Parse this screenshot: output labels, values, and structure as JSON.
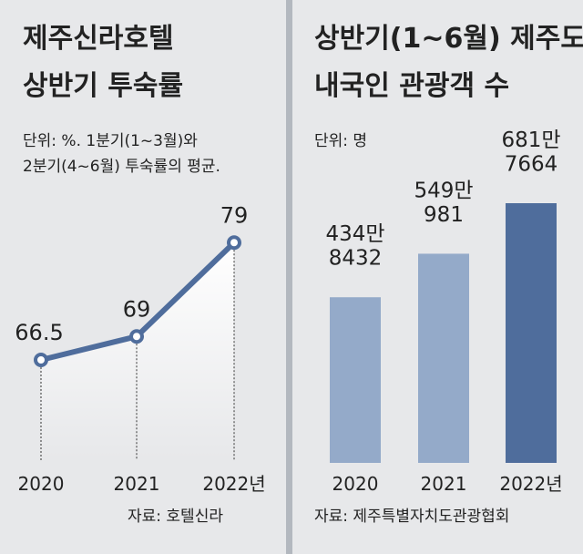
{
  "chart_data": [
    {
      "type": "line",
      "title": [
        "제주신라호텔",
        "상반기 투숙률"
      ],
      "subtitle": [
        "단위: %. 1분기(1~3월)와",
        "2분기(4~6월) 투숙률의 평균."
      ],
      "categories": [
        "2020",
        "2021",
        "2022년"
      ],
      "values": [
        66.5,
        69,
        79
      ],
      "color": "#4f6d9c",
      "source": "자료: 호텔신라"
    },
    {
      "type": "bar",
      "title": [
        "상반기(1~6월) 제주도",
        "내국인 관광객 수"
      ],
      "subtitle": [
        "단위: 명"
      ],
      "categories": [
        "2020",
        "2021",
        "2022년"
      ],
      "values": [
        4348432,
        5490981,
        6817664
      ],
      "value_labels": [
        "434만\n8432",
        "549만\n981",
        "681만\n7664"
      ],
      "colors": [
        "#94aac9",
        "#94aac9",
        "#4f6d9c"
      ],
      "source": "자료: 제주특별자치도관광협회"
    }
  ]
}
